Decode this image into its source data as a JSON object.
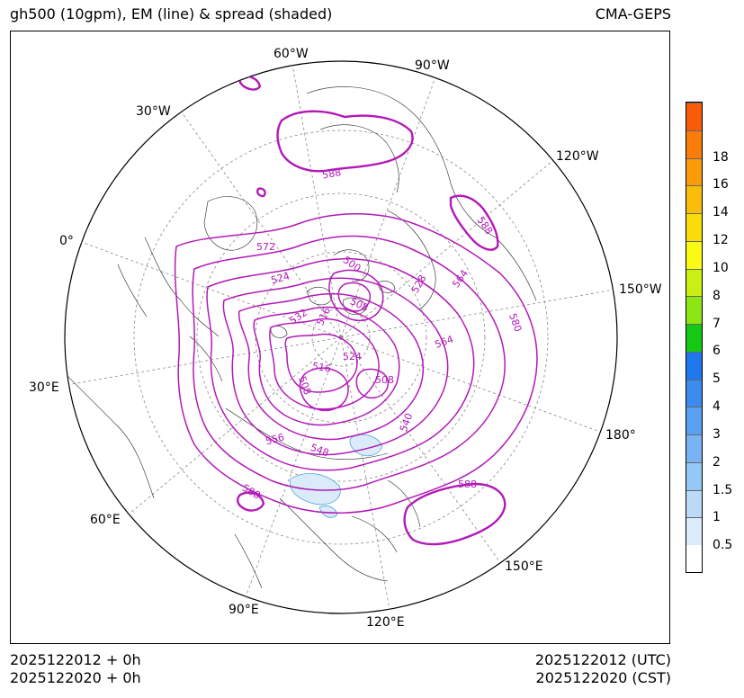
{
  "header": {
    "title": "gh500 (10gpm), EM (line) & spread (shaded)",
    "model": "CMA-GEPS"
  },
  "map": {
    "projection": "north-polar-stereographic",
    "longitude_labels": [
      "60°W",
      "90°W",
      "30°W",
      "120°W",
      "0°",
      "150°W",
      "30°E",
      "180°",
      "60°E",
      "150°E",
      "90°E",
      "120°E"
    ],
    "contour_labels": [
      "588",
      "588",
      "572",
      "524",
      "532",
      "516",
      "500",
      "508",
      "528",
      "564",
      "580",
      "564",
      "524",
      "516",
      "508",
      "508",
      "540",
      "556",
      "548",
      "588",
      "588"
    ],
    "contour_color": "#b21ab8",
    "coastline_color": "#000000",
    "grid_color": "#888888"
  },
  "colorbar": {
    "labels": [
      "0.5",
      "1",
      "1.5",
      "2",
      "3",
      "4",
      "5",
      "6",
      "7",
      "8",
      "10",
      "12",
      "14",
      "16",
      "18"
    ],
    "colors": [
      "#ffffff",
      "#dcebfa",
      "#bcdaf8",
      "#96c8f6",
      "#78b4f4",
      "#5aa0f2",
      "#3c8cf0",
      "#1e78ee",
      "#14c814",
      "#8ce614",
      "#c8f014",
      "#fafa14",
      "#fadc0a",
      "#fabe0a",
      "#fa9c0a",
      "#fa7c0a",
      "#fa5c0a"
    ]
  },
  "footer": {
    "left_line1": "2025122012 + 0h",
    "left_line2": "2025122020 + 0h",
    "right_line1": "2025122012 (UTC)",
    "right_line2": "2025122020 (CST)"
  }
}
